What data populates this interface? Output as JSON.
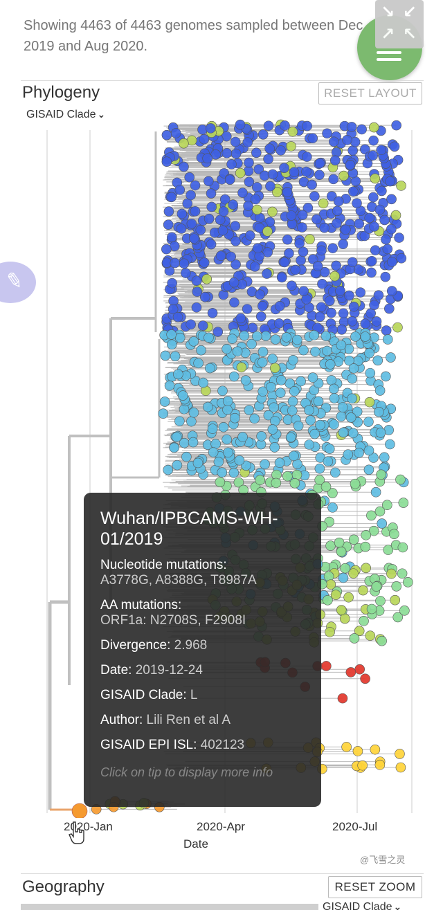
{
  "summary": {
    "text": "Showing 4463 of 4463 genomes sampled between Dec 2019 and Aug 2020."
  },
  "phylogeny": {
    "title": "Phylogeny",
    "reset_label": "RESET LAYOUT",
    "color_by": "GISAID Clade",
    "x_ticks": [
      "2020-Jan",
      "2020-Apr",
      "2020-Jul"
    ],
    "x_label": "Date"
  },
  "tooltip": {
    "strain": "Wuhan/IPBCAMS-WH-01/2019",
    "nuc_key": "Nucleotide mutations:",
    "nuc_val": "A3778G, A8388G, T8987A",
    "aa_key": "AA mutations:",
    "aa_val": "ORF1a:  N2708S, F2908I",
    "div_key": "Divergence:",
    "div_val": "2.968",
    "date_key": "Date:",
    "date_val": "2019-12-24",
    "clade_key": "GISAID Clade:",
    "clade_val": "L",
    "author_key": "Author:",
    "author_val": "Lili Ren et al A",
    "epi_key": "GISAID EPI ISL:",
    "epi_val": "402123",
    "hint": "Click on tip to display more info"
  },
  "geography": {
    "title": "Geography",
    "reset_label": "RESET ZOOM",
    "color_by": "GISAID Clade"
  },
  "watermark": "@飞雪之灵",
  "colors": {
    "clade_gr": "#3f61e2",
    "clade_gh": "#5fbde2",
    "clade_g": "#8bdc96",
    "clade_v": "#b8d65a",
    "clade_s": "#ffd43a",
    "clade_l": "#f59a30",
    "clade_o": "#e2362b",
    "branch": "#c0c0c0",
    "accent_green": "#7cba6f"
  }
}
